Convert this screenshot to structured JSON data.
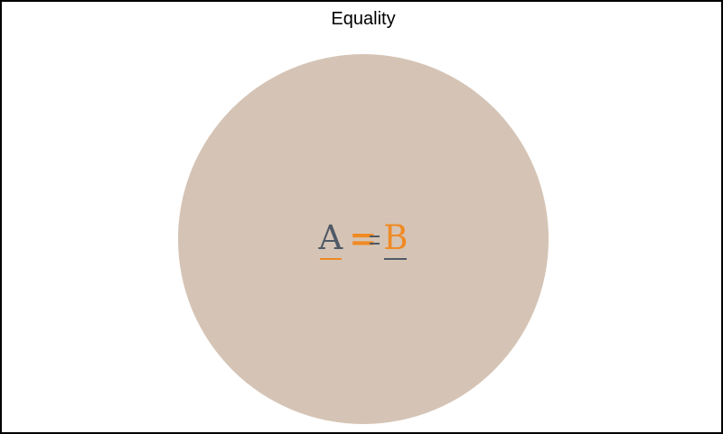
{
  "diagram": {
    "title": "Equality",
    "equation": {
      "left": "A",
      "operator": "=",
      "right": "B"
    }
  },
  "colors": {
    "circle_fill": "#d5c4b5",
    "left_term": "#4f5966",
    "operator": "#f08a24",
    "right_term": "#f08a24",
    "frame_border": "#000000"
  }
}
